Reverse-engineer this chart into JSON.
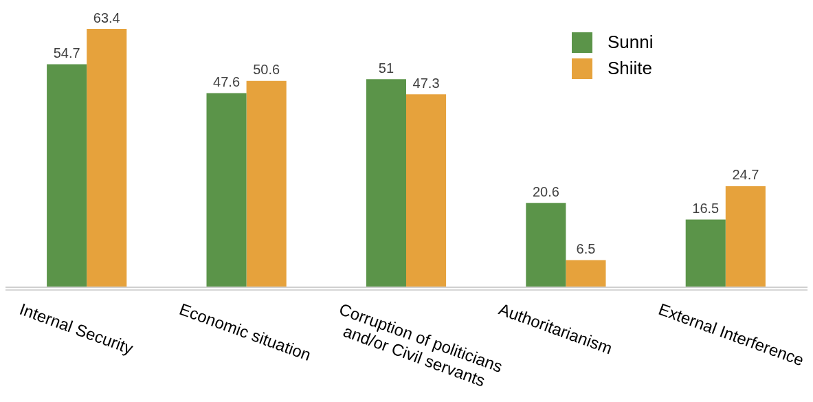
{
  "chart_data": {
    "type": "bar",
    "categories": [
      "Internal Security",
      "Economic situation",
      "Corruption of politicians and/or Civil servants",
      "Authoritarianism",
      "External Interference"
    ],
    "series": [
      {
        "name": "Sunni",
        "color": "#5b9449",
        "values": [
          54.7,
          47.6,
          51,
          20.6,
          16.5
        ]
      },
      {
        "name": "Shiite",
        "color": "#e6a23c",
        "values": [
          63.4,
          50.6,
          47.3,
          6.5,
          24.7
        ]
      }
    ],
    "data_labels": true,
    "legend": "top right",
    "grid": false
  }
}
